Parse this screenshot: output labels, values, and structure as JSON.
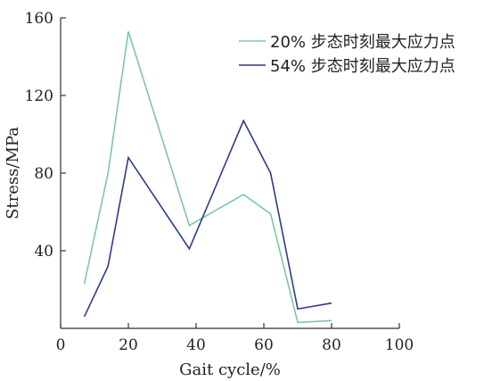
{
  "chart_data": {
    "type": "line",
    "xlabel": "Gait cycle/%",
    "ylabel": "Stress/MPa",
    "xlim": [
      0,
      100
    ],
    "ylim": [
      0,
      160
    ],
    "x_ticks": [
      0,
      20,
      40,
      60,
      80,
      100
    ],
    "y_ticks": [
      40,
      80,
      120,
      160
    ],
    "grid": false,
    "legend_position": "top-right",
    "series": [
      {
        "name": "20% 步态时刻最大应力点",
        "color": "#7ec7a0",
        "x": [
          7,
          14,
          20,
          38,
          54,
          62,
          70,
          80
        ],
        "y": [
          23,
          80,
          153,
          53,
          69,
          59,
          3,
          4
        ]
      },
      {
        "name": "54% 步态时刻最大应力点",
        "color": "#2e3a8c",
        "x": [
          7,
          14,
          20,
          38,
          54,
          62,
          70,
          80
        ],
        "y": [
          6,
          32,
          88,
          41,
          107,
          80,
          10,
          13
        ]
      }
    ]
  }
}
